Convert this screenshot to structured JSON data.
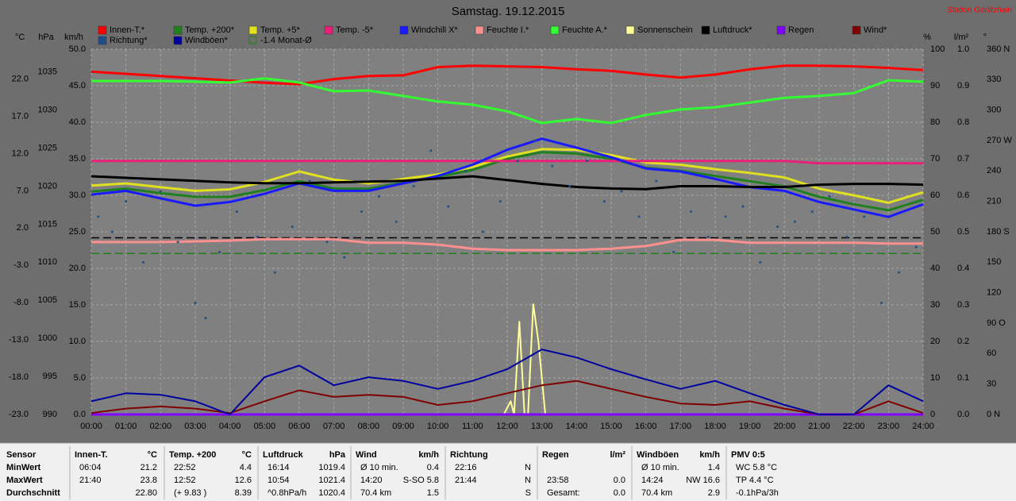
{
  "chart_data": {
    "type": "line",
    "title": "Samstag. 19.12.2015",
    "annotation": "Station Görlitzhain",
    "x": [
      0,
      1,
      2,
      3,
      4,
      5,
      6,
      7,
      8,
      9,
      10,
      11,
      12,
      13,
      14,
      15,
      16,
      17,
      18,
      19,
      20,
      21,
      22,
      23,
      24
    ],
    "xlim": [
      0,
      24
    ],
    "xticks": [
      {
        "value": 0,
        "label": "00:00"
      },
      {
        "value": 1,
        "label": "01:00"
      },
      {
        "value": 2,
        "label": "02:00"
      },
      {
        "value": 3,
        "label": "03:00"
      },
      {
        "value": 4,
        "label": "04:00"
      },
      {
        "value": 5,
        "label": "05:00"
      },
      {
        "value": 6,
        "label": "06:00"
      },
      {
        "value": 7,
        "label": "07:00"
      },
      {
        "value": 8,
        "label": "08:00"
      },
      {
        "value": 9,
        "label": "09:00"
      },
      {
        "value": 10,
        "label": "10:00"
      },
      {
        "value": 11,
        "label": "11:00"
      },
      {
        "value": 12,
        "label": "12:00"
      },
      {
        "value": 13,
        "label": "13:00"
      },
      {
        "value": 14,
        "label": "14:00"
      },
      {
        "value": 15,
        "label": "15:00"
      },
      {
        "value": 16,
        "label": "16:00"
      },
      {
        "value": 17,
        "label": "17:00"
      },
      {
        "value": 18,
        "label": "18:00"
      },
      {
        "value": 19,
        "label": "19:00"
      },
      {
        "value": 20,
        "label": "20:00"
      },
      {
        "value": 21,
        "label": "21:00"
      },
      {
        "value": 22,
        "label": "22:00"
      },
      {
        "value": 23,
        "label": "23:00"
      },
      {
        "value": 24,
        "label": "24:00"
      }
    ],
    "ylabel": "°C",
    "ylim": [
      -23,
      26
    ],
    "yticks": [
      {
        "value": 22,
        "label": "22.0"
      },
      {
        "value": 17,
        "label": "17.0"
      },
      {
        "value": 12,
        "label": "12.0"
      },
      {
        "value": 7,
        "label": "7.0"
      },
      {
        "value": 2,
        "label": "2.0"
      },
      {
        "value": -3,
        "label": "-3.0"
      },
      {
        "value": -8,
        "label": "-8.0"
      },
      {
        "value": -13,
        "label": "-13.0"
      },
      {
        "value": -18,
        "label": "-18.0"
      },
      {
        "value": -23,
        "label": "-23.0"
      }
    ],
    "y2label": "hPa",
    "y2lim": [
      990,
      1038
    ],
    "y2ticks": [
      1035,
      1030,
      1025,
      1020,
      1015,
      1010,
      1005,
      1000,
      995,
      990
    ],
    "y3label": "km/h",
    "y3lim": [
      0,
      50
    ],
    "y3ticks": [
      {
        "value": 50,
        "label": "50.0"
      },
      {
        "value": 45,
        "label": "45.0"
      },
      {
        "value": 40,
        "label": "40.0"
      },
      {
        "value": 35,
        "label": "35.0"
      },
      {
        "value": 30,
        "label": "30.0"
      },
      {
        "value": 25,
        "label": "25.0"
      },
      {
        "value": 20,
        "label": "20.0"
      },
      {
        "value": 15,
        "label": "15.0"
      },
      {
        "value": 10,
        "label": "10.0"
      },
      {
        "value": 5,
        "label": "5.0"
      },
      {
        "value": 0,
        "label": "0.0"
      }
    ],
    "y4label": "%",
    "y4lim": [
      0,
      100
    ],
    "y4ticks": [
      100,
      90,
      80,
      70,
      60,
      50,
      40,
      30,
      20,
      10,
      0
    ],
    "y5label": "l/m²",
    "y5lim": [
      0,
      1
    ],
    "y5ticks": [
      {
        "value": 1,
        "label": "1.0"
      },
      0.9,
      0.8,
      0.7,
      0.6,
      0.5,
      0.4,
      0.3,
      0.2,
      0.1,
      {
        "value": 0,
        "label": "0.0"
      }
    ],
    "y6label": "°",
    "y6lim": [
      0,
      360
    ],
    "y6ticks": [
      {
        "value": 360,
        "label": "360 N"
      },
      330,
      300,
      {
        "value": 270,
        "label": "270 W"
      },
      240,
      210,
      {
        "value": 180,
        "label": "180 S"
      },
      150,
      120,
      {
        "value": 90,
        "label": "90 O"
      },
      60,
      30,
      {
        "value": 0,
        "label": "0 N"
      }
    ],
    "grid": true,
    "grid_axis": "y3",
    "series": [
      {
        "name": "Innen-T.*",
        "color": "#ff0000",
        "axis": "y",
        "values": [
          23.0,
          22.7,
          22.4,
          22.1,
          21.8,
          21.5,
          21.3,
          22.0,
          22.4,
          22.5,
          23.6,
          23.8,
          23.7,
          23.6,
          23.3,
          23.1,
          22.6,
          22.2,
          22.6,
          23.3,
          23.8,
          23.8,
          23.7,
          23.5,
          23.2
        ]
      },
      {
        "name": "Temp. +200*",
        "color": "#208020",
        "axis": "y",
        "values": [
          6.9,
          7.3,
          6.7,
          6.2,
          6.2,
          7.1,
          8.3,
          7.3,
          7.3,
          8.1,
          8.9,
          9.8,
          11.3,
          12.2,
          12.0,
          11.3,
          10.1,
          9.7,
          9.0,
          8.3,
          7.6,
          6.2,
          5.2,
          4.4,
          5.8
        ]
      },
      {
        "name": "Temp. +5*",
        "color": "#e0e020",
        "axis": "y",
        "values": [
          7.7,
          8.0,
          7.5,
          7.0,
          7.2,
          8.2,
          9.6,
          8.5,
          8.0,
          8.6,
          9.2,
          10.2,
          11.6,
          12.6,
          12.5,
          11.8,
          10.8,
          10.5,
          9.9,
          9.4,
          8.8,
          7.3,
          6.4,
          5.4,
          6.8
        ]
      },
      {
        "name": "Temp. -5*",
        "color": "#e8207a",
        "axis": "y",
        "values": [
          11.0,
          11.0,
          11.0,
          11.0,
          11.0,
          11.0,
          11.0,
          11.0,
          11.0,
          11.0,
          11.0,
          11.0,
          11.0,
          11.0,
          11.0,
          11.0,
          11.0,
          11.0,
          11.0,
          11.0,
          11.0,
          10.7,
          10.7,
          10.7,
          10.7
        ]
      },
      {
        "name": "Windchill X*",
        "color": "#1a1aff",
        "axis": "y",
        "values": [
          6.5,
          7.0,
          6.0,
          5.0,
          5.5,
          6.6,
          8.0,
          7.0,
          7.0,
          8.0,
          9.0,
          10.5,
          12.5,
          14.0,
          12.8,
          11.5,
          10.0,
          9.6,
          8.6,
          7.5,
          7.0,
          5.5,
          4.5,
          3.5,
          5.2
        ]
      },
      {
        "name": "Feuchte I.*",
        "color": "#ff9090",
        "axis": "y4",
        "values": [
          47.2,
          47.2,
          47.2,
          47.4,
          47.6,
          48.0,
          48.0,
          48.0,
          47.0,
          47.0,
          46.5,
          45.4,
          45.0,
          45.0,
          45.0,
          45.4,
          46.1,
          47.8,
          47.8,
          47.0,
          47.0,
          47.0,
          47.0,
          46.8,
          46.8
        ]
      },
      {
        "name": "Feuchte A.*",
        "color": "#33ff33",
        "axis": "y4",
        "values": [
          91.3,
          91.3,
          91.3,
          91.1,
          90.9,
          92.0,
          90.9,
          88.5,
          88.7,
          87.2,
          85.7,
          84.8,
          83.0,
          79.8,
          80.9,
          79.8,
          82.0,
          83.5,
          84.1,
          85.4,
          86.7,
          87.2,
          88.0,
          91.5,
          91.1
        ]
      },
      {
        "name": "Sonnenschein",
        "color": "#ffff99",
        "axis": "y3",
        "x": [
          0,
          11.9,
          12.1,
          12.2,
          12.35,
          12.5,
          12.6,
          12.75,
          12.9,
          13.1,
          13.2,
          24
        ],
        "values": [
          0,
          0,
          1.8,
          0,
          12.7,
          0,
          0,
          15.1,
          10.0,
          0,
          0,
          0
        ]
      },
      {
        "name": "Luftdruck*",
        "color": "#000000",
        "axis": "y2",
        "values": [
          1021.3,
          1021.1,
          1020.9,
          1020.7,
          1020.5,
          1020.4,
          1020.4,
          1020.5,
          1020.6,
          1020.7,
          1021.0,
          1021.3,
          1020.8,
          1020.3,
          1019.9,
          1019.7,
          1019.6,
          1020.0,
          1020.0,
          1019.9,
          1019.9,
          1020.2,
          1020.3,
          1020.3,
          1020.2
        ]
      },
      {
        "name": "Regen",
        "color": "#8000ff",
        "axis": "y5",
        "values": [
          0,
          0,
          0,
          0,
          0,
          0,
          0,
          0,
          0,
          0,
          0,
          0,
          0,
          0,
          0,
          0,
          0,
          0,
          0,
          0,
          0,
          0,
          0,
          0,
          0
        ]
      },
      {
        "name": "Wind*",
        "color": "#800000",
        "axis": "y3",
        "values": [
          0.2,
          0.8,
          1.1,
          0.8,
          0.2,
          1.8,
          3.3,
          2.4,
          2.7,
          2.4,
          1.3,
          1.8,
          2.9,
          4.0,
          4.6,
          3.5,
          2.4,
          1.5,
          1.3,
          1.8,
          0.8,
          0,
          0,
          1.8,
          0.2
        ]
      },
      {
        "name": "Richtung*",
        "color": "#1f4e8c",
        "axis": "y6",
        "marker": "dot",
        "x": [
          0.2,
          0.6,
          1.0,
          1.5,
          2.0,
          2.5,
          3.0,
          3.3,
          3.7,
          4.2,
          4.8,
          5.3,
          5.8,
          6.3,
          6.8,
          7.3,
          7.8,
          8.3,
          8.8,
          9.3,
          9.8,
          10.3,
          10.8,
          11.3,
          11.8,
          12.3,
          12.8,
          13.3,
          13.8,
          14.3,
          14.8,
          15.3,
          15.8,
          16.3,
          16.8,
          17.3,
          17.8,
          18.3,
          18.8,
          19.3,
          19.8,
          20.3,
          20.8,
          21.3,
          21.8,
          22.3,
          22.8,
          23.3,
          23.8
        ],
        "values": [
          195,
          180,
          210,
          150,
          220,
          170,
          110,
          95,
          160,
          200,
          175,
          140,
          185,
          230,
          170,
          155,
          200,
          215,
          190,
          225,
          260,
          205,
          240,
          180,
          210,
          250,
          270,
          245,
          225,
          250,
          210,
          220,
          195,
          230,
          160,
          200,
          175,
          195,
          205,
          150,
          185,
          190,
          200,
          215,
          175,
          195,
          110,
          140,
          165
        ]
      },
      {
        "name": "Windböen*",
        "color": "#0000a0",
        "axis": "y3",
        "values": [
          1.8,
          2.9,
          2.7,
          1.8,
          0,
          5.1,
          6.7,
          4.0,
          5.1,
          4.6,
          3.5,
          4.6,
          6.2,
          8.9,
          7.8,
          6.2,
          4.8,
          3.5,
          4.6,
          2.9,
          1.3,
          0,
          0,
          4.0,
          1.8
        ]
      }
    ],
    "reference_lines": [
      {
        "name": "-1.4 Monat-Ø",
        "value": -1.4,
        "color": "#208020",
        "axis": "y"
      },
      {
        "value": 0.7,
        "color": "#000000",
        "axis": "y"
      }
    ]
  },
  "table": {
    "panels": [
      {
        "header": "Sensor",
        "rows": [
          {
            "left": "MinWert"
          },
          {
            "left": "MaxWert"
          },
          {
            "left": "Durchschnitt"
          }
        ]
      },
      {
        "header": "Innen-T.",
        "unit": "°C",
        "rows": [
          {
            "left": "06:04",
            "right": "21.2"
          },
          {
            "left": "21:40",
            "right": "23.8"
          },
          {
            "right": "22.80"
          }
        ]
      },
      {
        "header": "Temp. +200",
        "unit": "°C",
        "rows": [
          {
            "left": "22:52",
            "right": "4.4"
          },
          {
            "left": "12:52",
            "right": "12.6"
          },
          {
            "left": "(+ 9.83 )",
            "right": "8.39"
          }
        ]
      },
      {
        "header": "Luftdruck",
        "unit": "hPa",
        "rows": [
          {
            "left": "16:14",
            "right": "1019.4"
          },
          {
            "left": "10:54",
            "right": "1021.4"
          },
          {
            "left": "^0.8hPa/h",
            "right": "1020.4"
          }
        ]
      },
      {
        "header": "Wind",
        "unit": "km/h",
        "rows": [
          {
            "left": "Ø 10 min.",
            "right": "0.4"
          },
          {
            "left": "14:20",
            "right": "S-SO 5.8"
          },
          {
            "left": "70.4 km",
            "right": "1.5"
          }
        ]
      },
      {
        "header": "Richtung",
        "rows": [
          {
            "left": "22:16",
            "right": "N"
          },
          {
            "left": "21:44",
            "right": "N"
          },
          {
            "right": "S"
          }
        ]
      },
      {
        "header": "Regen",
        "unit": "l/m²",
        "rows": [
          {},
          {
            "left": "23:58",
            "right": "0.0"
          },
          {
            "left": "Gesamt:",
            "right": "0.0"
          }
        ]
      },
      {
        "header": "Windböen",
        "unit": "km/h",
        "rows": [
          {
            "left": "Ø 10 min.",
            "right": "1.4"
          },
          {
            "left": "14:24",
            "right": "NW 16.6"
          },
          {
            "left": "70.4 km",
            "right": "2.9"
          }
        ]
      },
      {
        "header": "PMV 0:5",
        "rows": [
          {
            "left": "WC 5.8 °C"
          },
          {
            "left": "TP 4.4 °C"
          },
          {
            "left": "-0.1hPa/3h"
          }
        ]
      }
    ]
  }
}
